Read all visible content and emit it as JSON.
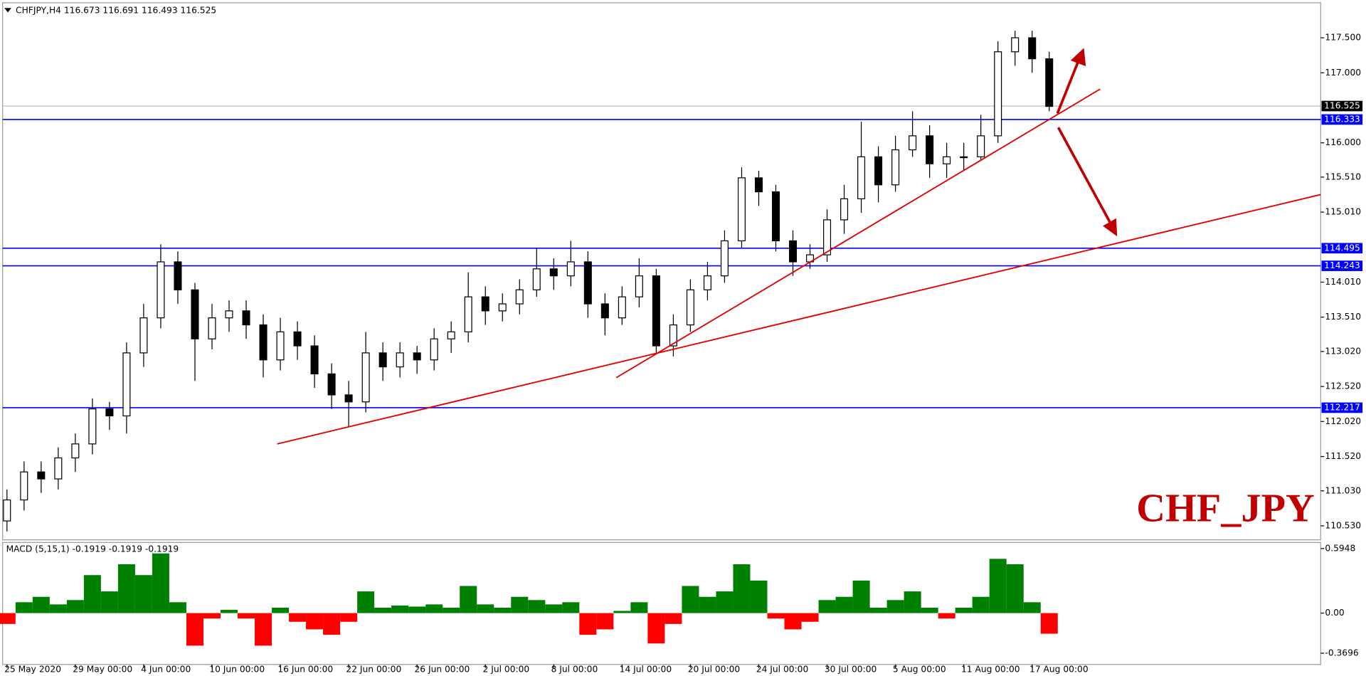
{
  "chart_data": [
    {
      "type": "candlestick",
      "title": "CHFJPY,H4  116.673 116.691 116.493 116.525",
      "annotation": "CHF_JPY",
      "categories": [
        "25 May 2020",
        null,
        null,
        null,
        "29 May 00:00",
        null,
        null,
        null,
        "4 Jun 00:00",
        null,
        null,
        null,
        "10 Jun 00:00",
        null,
        null,
        null,
        "16 Jun 00:00",
        null,
        null,
        null,
        "22 Jun 00:00",
        null,
        null,
        null,
        "26 Jun 00:00",
        null,
        null,
        null,
        "2 Jul 00:00",
        null,
        null,
        null,
        "8 Jul 00:00",
        null,
        null,
        null,
        "14 Jul 00:00",
        null,
        null,
        null,
        "20 Jul 00:00",
        null,
        null,
        null,
        "24 Jul 00:00",
        null,
        null,
        null,
        "30 Jul 00:00",
        null,
        null,
        null,
        "5 Aug 00:00",
        null,
        null,
        null,
        "11 Aug 00:00",
        null,
        null,
        null,
        "17 Aug 00:00",
        null
      ],
      "open": [
        110.6,
        110.9,
        111.3,
        111.2,
        111.5,
        111.7,
        112.2,
        112.1,
        113.0,
        113.5,
        114.3,
        113.9,
        113.2,
        113.5,
        113.6,
        113.4,
        112.9,
        113.3,
        113.1,
        112.7,
        112.4,
        112.3,
        113.0,
        112.8,
        113.0,
        112.9,
        113.2,
        113.3,
        113.8,
        113.6,
        113.7,
        113.9,
        114.2,
        114.1,
        114.3,
        113.7,
        113.5,
        113.8,
        114.1,
        113.1,
        113.4,
        113.9,
        114.1,
        114.6,
        115.5,
        115.3,
        114.6,
        114.3,
        114.4,
        114.9,
        115.2,
        115.8,
        115.4,
        115.9,
        116.1,
        115.7,
        115.8,
        115.8,
        116.1,
        117.3,
        117.5,
        117.2
      ],
      "high": [
        111.05,
        111.45,
        111.45,
        111.65,
        111.85,
        112.35,
        112.3,
        113.15,
        113.7,
        114.55,
        114.45,
        114.0,
        113.7,
        113.75,
        113.75,
        113.55,
        113.5,
        113.45,
        113.25,
        112.85,
        112.6,
        113.3,
        113.15,
        113.15,
        113.1,
        113.35,
        113.45,
        114.15,
        113.95,
        113.85,
        114.05,
        114.5,
        114.35,
        114.6,
        114.45,
        113.85,
        113.95,
        114.35,
        114.2,
        113.55,
        114.05,
        114.3,
        114.75,
        115.65,
        115.6,
        115.4,
        114.75,
        114.55,
        115.05,
        115.4,
        116.3,
        115.95,
        116.1,
        116.45,
        116.25,
        116.0,
        116.0,
        116.4,
        117.45,
        117.6,
        117.6,
        117.3
      ],
      "low": [
        110.45,
        110.75,
        111.0,
        111.05,
        111.3,
        111.55,
        111.9,
        111.85,
        112.8,
        113.35,
        113.7,
        112.6,
        113.05,
        113.3,
        113.2,
        112.65,
        112.75,
        112.9,
        112.5,
        112.2,
        111.95,
        112.15,
        112.6,
        112.65,
        112.7,
        112.75,
        113.0,
        113.15,
        113.4,
        113.45,
        113.55,
        113.8,
        113.9,
        113.95,
        113.5,
        113.25,
        113.4,
        113.65,
        112.98,
        112.95,
        113.3,
        113.75,
        114.0,
        114.5,
        115.1,
        114.45,
        114.1,
        114.2,
        114.3,
        114.7,
        115.0,
        115.15,
        115.3,
        115.8,
        115.5,
        115.5,
        115.6,
        115.75,
        116.0,
        117.1,
        117.0,
        116.45
      ],
      "close": [
        110.9,
        111.3,
        111.2,
        111.5,
        111.7,
        112.2,
        112.1,
        113.0,
        113.5,
        114.3,
        113.9,
        113.2,
        113.5,
        113.6,
        113.4,
        112.9,
        113.3,
        113.1,
        112.7,
        112.4,
        112.3,
        113.0,
        112.8,
        113.0,
        112.9,
        113.2,
        113.3,
        113.8,
        113.6,
        113.7,
        113.9,
        114.2,
        114.1,
        114.3,
        113.7,
        113.5,
        113.8,
        114.1,
        113.1,
        113.4,
        113.9,
        114.1,
        114.6,
        115.5,
        115.3,
        114.6,
        114.3,
        114.4,
        114.9,
        115.2,
        115.8,
        115.4,
        115.9,
        116.1,
        115.7,
        115.8,
        115.8,
        116.1,
        117.3,
        117.5,
        117.2,
        116.52
      ],
      "ylim": [
        110.33,
        118.0
      ],
      "yticks": [
        {
          "value": 117.5,
          "label": "117.500"
        },
        {
          "value": 117.0,
          "label": "117.000"
        },
        {
          "value": 116.0,
          "label": "116.000"
        },
        {
          "value": 115.51,
          "label": "115.510"
        },
        {
          "value": 115.01,
          "label": "115.010"
        },
        {
          "value": 114.01,
          "label": "114.010"
        },
        {
          "value": 113.51,
          "label": "113.510"
        },
        {
          "value": 113.02,
          "label": "113.020"
        },
        {
          "value": 112.52,
          "label": "112.520"
        },
        {
          "value": 112.02,
          "label": "112.020"
        },
        {
          "value": 111.52,
          "label": "111.520"
        },
        {
          "value": 111.03,
          "label": "111.030"
        },
        {
          "value": 110.53,
          "label": "110.530"
        }
      ],
      "levels": [
        {
          "value": 116.333,
          "label": "116.333"
        },
        {
          "value": 114.495,
          "label": "114.495"
        },
        {
          "value": 114.243,
          "label": "114.243"
        },
        {
          "value": 112.217,
          "label": "112.217"
        }
      ],
      "level_color": "#0000ff",
      "last": {
        "value": 116.525,
        "label": "116.525"
      }
    },
    {
      "type": "histogram",
      "title": "MACD (5,15,1) -0.1919 -0.1919 -0.1919",
      "values": [
        -0.1,
        0.1,
        0.15,
        0.08,
        0.12,
        0.35,
        0.2,
        0.45,
        0.35,
        0.55,
        0.1,
        -0.3,
        -0.05,
        0.03,
        -0.05,
        -0.3,
        0.05,
        -0.08,
        -0.15,
        -0.2,
        -0.08,
        0.2,
        0.05,
        0.07,
        0.06,
        0.08,
        0.05,
        0.25,
        0.08,
        0.05,
        0.15,
        0.12,
        0.08,
        0.1,
        -0.2,
        -0.15,
        0.02,
        0.1,
        -0.28,
        -0.1,
        0.25,
        0.15,
        0.2,
        0.45,
        0.3,
        -0.05,
        -0.15,
        -0.08,
        0.12,
        0.15,
        0.3,
        0.05,
        0.12,
        0.2,
        0.05,
        -0.05,
        0.05,
        0.15,
        0.5,
        0.45,
        0.1,
        -0.19
      ],
      "positive_color": "#008000",
      "negative_color": "#ff0000",
      "ylim": [
        -0.474,
        0.651
      ],
      "yticks": [
        0.5948,
        {
          "value": 0,
          "label": "0.00"
        },
        -0.3696
      ]
    }
  ]
}
